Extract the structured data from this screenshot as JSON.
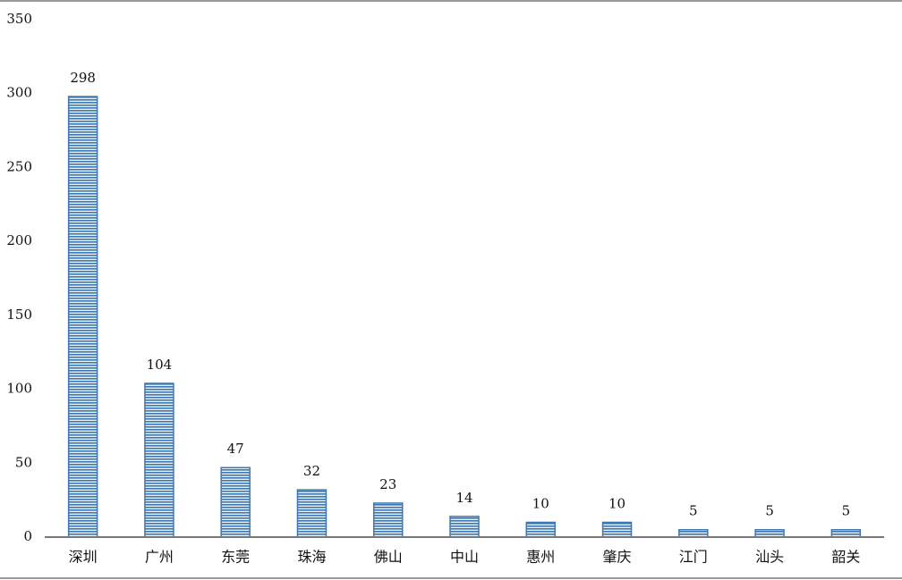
{
  "chart_data": {
    "type": "bar",
    "categories": [
      "深圳",
      "广州",
      "东莞",
      "珠海",
      "佛山",
      "中山",
      "惠州",
      "肇庆",
      "江门",
      "汕头",
      "韶关"
    ],
    "values": [
      298,
      104,
      47,
      32,
      23,
      14,
      10,
      10,
      5,
      5,
      5
    ],
    "color": "#3f78b0",
    "ylim": [
      0,
      350
    ],
    "yticks": [
      0,
      50,
      100,
      150,
      200,
      250,
      300,
      350
    ],
    "grid": false
  }
}
